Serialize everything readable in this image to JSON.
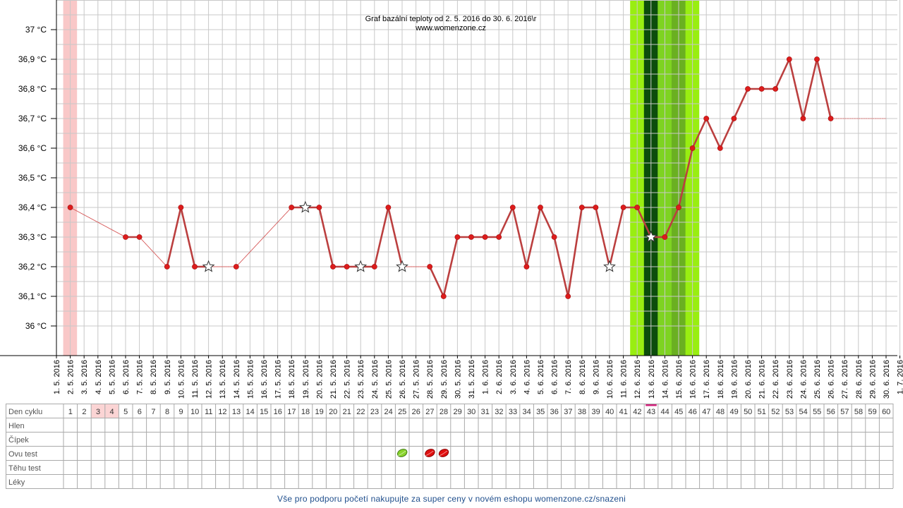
{
  "chart_data": {
    "type": "line",
    "title": "Graf bazální teploty od 2. 5. 2016 do 30. 6. 2016\\r",
    "subtitle": "www.womenzone.cz",
    "ylabel": "",
    "xlabel": "",
    "ylim": [
      35.9,
      37.1
    ],
    "y_ticks": [
      {
        "value": 36.0,
        "label": "36 °C"
      },
      {
        "value": 36.1,
        "label": "36,1 °C"
      },
      {
        "value": 36.2,
        "label": "36,2 °C"
      },
      {
        "value": 36.3,
        "label": "36,3 °C"
      },
      {
        "value": 36.4,
        "label": "36,4 °C"
      },
      {
        "value": 36.5,
        "label": "36,5 °C"
      },
      {
        "value": 36.6,
        "label": "36,6 °C"
      },
      {
        "value": 36.7,
        "label": "36,7 °C"
      },
      {
        "value": 36.8,
        "label": "36,8 °C"
      },
      {
        "value": 36.9,
        "label": "36,9 °C"
      },
      {
        "value": 37.0,
        "label": "37 °C"
      }
    ],
    "x_labels": [
      "1. 5. 2016",
      "2. 5. 2016",
      "3. 5. 2016",
      "4. 5. 2016",
      "5. 5. 2016",
      "6. 5. 2016",
      "7. 5. 2016",
      "8. 5. 2016",
      "9. 5. 2016",
      "10. 5. 2016",
      "11. 5. 2016",
      "12. 5. 2016",
      "13. 5. 2016",
      "14. 5. 2016",
      "15. 5. 2016",
      "16. 5. 2016",
      "17. 5. 2016",
      "18. 5. 2016",
      "19. 5. 2016",
      "20. 5. 2016",
      "21. 5. 2016",
      "22. 5. 2016",
      "23. 5. 2016",
      "24. 5. 2016",
      "25. 5. 2016",
      "26. 5. 2016",
      "27. 5. 2016",
      "28. 5. 2016",
      "29. 5. 2016",
      "30. 5. 2016",
      "31. 5. 2016",
      "1. 6. 2016",
      "2. 6. 2016",
      "3. 6. 2016",
      "4. 6. 2016",
      "5. 6. 2016",
      "6. 6. 2016",
      "7. 6. 2016",
      "8. 6. 2016",
      "9. 6. 2016",
      "10. 6. 2016",
      "11. 6. 2016",
      "12. 6. 2016",
      "13. 6. 2016",
      "14. 6. 2016",
      "15. 6. 2016",
      "16. 6. 2016",
      "17. 6. 2016",
      "18. 6. 2016",
      "19. 6. 2016",
      "20. 6. 2016",
      "21. 6. 2016",
      "22. 6. 2016",
      "23. 6. 2016",
      "24. 6. 2016",
      "25. 6. 2016",
      "26. 6. 2016",
      "27. 6. 2016",
      "28. 6. 2016",
      "29. 6. 2016",
      "30. 6. 2016",
      "1. 7. 2016"
    ],
    "series": [
      {
        "values": [
          {
            "day": 1,
            "temp": 36.4
          },
          {
            "day": 5,
            "temp": 36.3
          },
          {
            "day": 6,
            "temp": 36.3
          },
          {
            "day": 8,
            "temp": 36.2
          },
          {
            "day": 9,
            "temp": 36.4
          },
          {
            "day": 10,
            "temp": 36.2
          },
          {
            "day": 11,
            "temp": 36.2,
            "star": true
          },
          {
            "day": 13,
            "temp": 36.2
          },
          {
            "day": 17,
            "temp": 36.4
          },
          {
            "day": 18,
            "temp": 36.4,
            "star": true
          },
          {
            "day": 19,
            "temp": 36.4
          },
          {
            "day": 20,
            "temp": 36.2
          },
          {
            "day": 21,
            "temp": 36.2
          },
          {
            "day": 22,
            "temp": 36.2,
            "star": true
          },
          {
            "day": 23,
            "temp": 36.2
          },
          {
            "day": 24,
            "temp": 36.4
          },
          {
            "day": 25,
            "temp": 36.2,
            "star": true
          },
          {
            "day": 27,
            "temp": 36.2
          },
          {
            "day": 28,
            "temp": 36.1
          },
          {
            "day": 29,
            "temp": 36.3
          },
          {
            "day": 30,
            "temp": 36.3
          },
          {
            "day": 31,
            "temp": 36.3
          },
          {
            "day": 32,
            "temp": 36.3
          },
          {
            "day": 33,
            "temp": 36.4
          },
          {
            "day": 34,
            "temp": 36.2
          },
          {
            "day": 35,
            "temp": 36.4
          },
          {
            "day": 36,
            "temp": 36.3
          },
          {
            "day": 37,
            "temp": 36.1
          },
          {
            "day": 38,
            "temp": 36.4
          },
          {
            "day": 39,
            "temp": 36.4
          },
          {
            "day": 40,
            "temp": 36.2,
            "star": true
          },
          {
            "day": 41,
            "temp": 36.4
          },
          {
            "day": 42,
            "temp": 36.4
          },
          {
            "day": 43,
            "temp": 36.3,
            "star": true
          },
          {
            "day": 44,
            "temp": 36.3
          },
          {
            "day": 45,
            "temp": 36.4
          },
          {
            "day": 46,
            "temp": 36.6
          },
          {
            "day": 47,
            "temp": 36.7
          },
          {
            "day": 48,
            "temp": 36.6
          },
          {
            "day": 49,
            "temp": 36.7
          },
          {
            "day": 50,
            "temp": 36.8
          },
          {
            "day": 51,
            "temp": 36.8
          },
          {
            "day": 52,
            "temp": 36.8
          },
          {
            "day": 53,
            "temp": 36.9
          },
          {
            "day": 54,
            "temp": 36.7
          },
          {
            "day": 55,
            "temp": 36.9
          },
          {
            "day": 56,
            "temp": 36.7
          }
        ],
        "trailing_value": 36.7,
        "trailing_end_day": 60
      }
    ],
    "shaded_bands": [
      {
        "from_day": 1,
        "to_day": 2,
        "color": "#f9c8c8"
      },
      {
        "from_day": 42,
        "to_day": 47,
        "color": "#99ee11"
      },
      {
        "from_day": 43,
        "to_day": 44,
        "color": "#0c4d0c"
      },
      {
        "from_day": 44,
        "to_day": 45,
        "color": "#7ed321"
      },
      {
        "from_day": 45,
        "to_day": 46,
        "color": "#6ab021"
      }
    ],
    "grid": true,
    "line_color": "#bb3f3f",
    "point_color": "#dd1c1c"
  },
  "table": {
    "row_labels": [
      "Den cyklu",
      "Hlen",
      "Čípek",
      "Ovu test",
      "Těhu test",
      "Léky"
    ],
    "cycle_days": [
      "1",
      "2",
      "3",
      "4",
      "5",
      "6",
      "7",
      "8",
      "9",
      "10",
      "11",
      "12",
      "13",
      "14",
      "15",
      "16",
      "17",
      "18",
      "19",
      "20",
      "21",
      "22",
      "23",
      "24",
      "25",
      "26",
      "27",
      "28",
      "29",
      "30",
      "31",
      "32",
      "33",
      "34",
      "35",
      "36",
      "37",
      "38",
      "39",
      "40",
      "41",
      "42",
      "43",
      "44",
      "45",
      "46",
      "47",
      "48",
      "49",
      "50",
      "51",
      "52",
      "53",
      "54",
      "55",
      "56",
      "57",
      "58",
      "59",
      "60"
    ],
    "highlight_days": [
      3,
      4
    ],
    "today_day": 43,
    "ovu_tests": [
      {
        "day": 25,
        "result": "green-leaf-icon"
      },
      {
        "day": 27,
        "result": "red-leaf-icon"
      },
      {
        "day": 28,
        "result": "red-leaf-icon"
      }
    ]
  },
  "footer": {
    "link_text": "Vše pro podporu početí nakupujte za super ceny v novém eshopu womenzone.cz/snazeni"
  }
}
